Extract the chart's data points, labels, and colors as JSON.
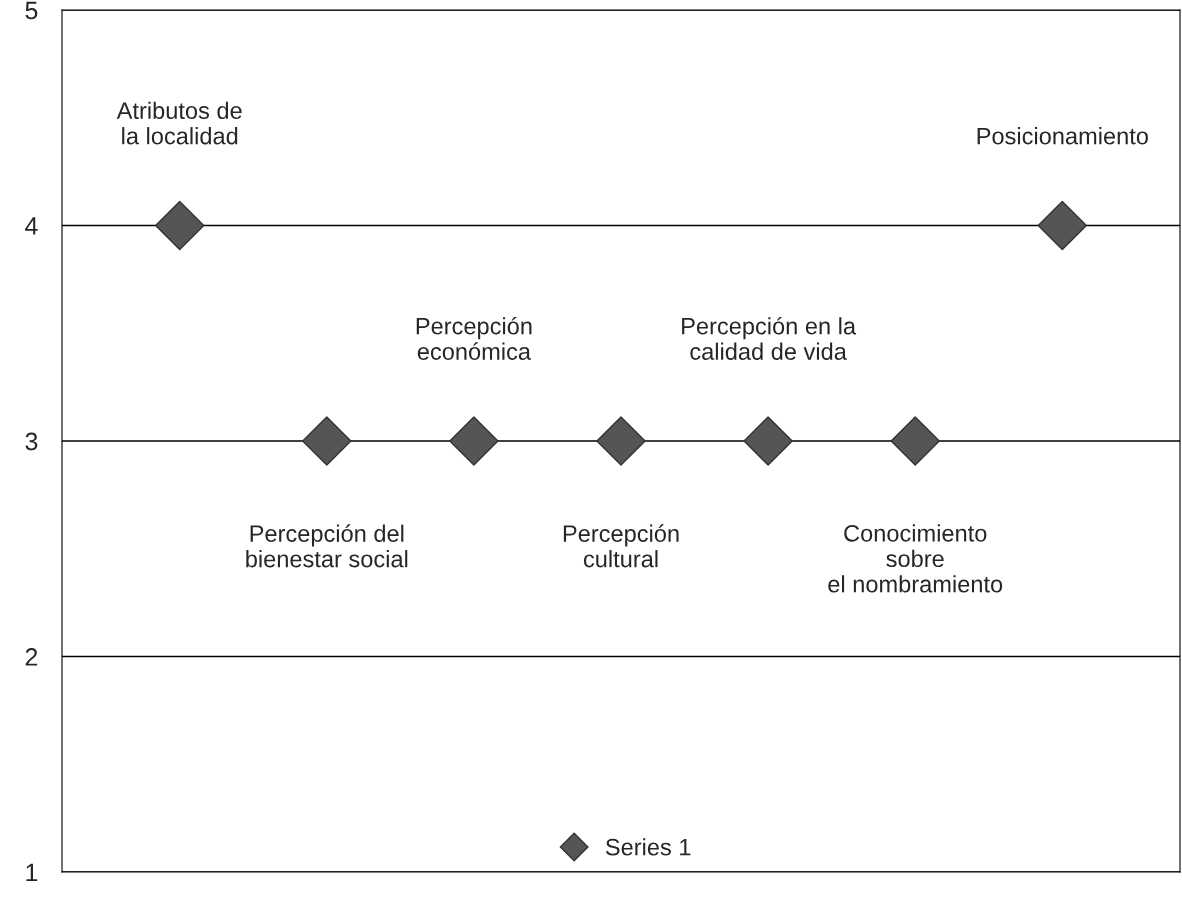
{
  "chart_data": {
    "type": "scatter",
    "categories": [
      null,
      null,
      null,
      null,
      null,
      null,
      null
    ],
    "series": [
      {
        "name": "Series 1",
        "color": "#555555",
        "values": [
          4,
          3,
          3,
          3,
          3,
          3,
          4
        ]
      }
    ],
    "annotations": [
      "Atributos de\nla localidad",
      "Percepción del\nbienestar social",
      "Percepción\neconómica",
      "Percepción\ncultural",
      "Percepción en la\ncalidad de vida",
      "Conocimiento\nsobre\nel nombramiento",
      "Posicionamiento"
    ],
    "ylim": [
      1,
      5
    ],
    "yticks": [
      1,
      2,
      3,
      4,
      5
    ],
    "grid": "y",
    "legend": "bottom",
    "marker": "diamond"
  }
}
